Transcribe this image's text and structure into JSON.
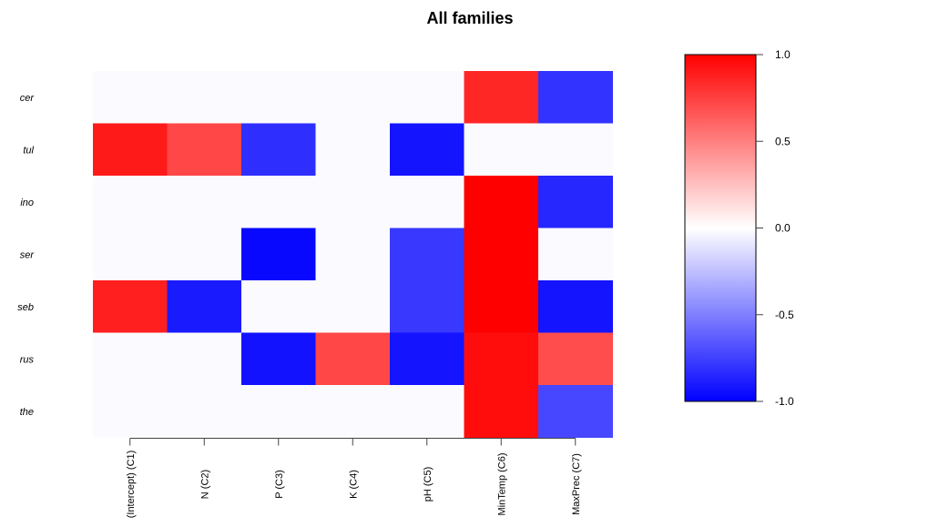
{
  "chart_data": {
    "type": "heatmap",
    "title": "All families",
    "rows": [
      "cer",
      "tul",
      "ino",
      "ser",
      "seb",
      "rus",
      "the"
    ],
    "columns": [
      "(Intercept) (C1)",
      "N (C2)",
      "P (C3)",
      "K (C4)",
      "pH (C5)",
      "MinTemp (C6)",
      "MaxPrec (C7)"
    ],
    "values": [
      [
        0,
        0,
        0,
        0,
        0,
        0.85,
        -0.8
      ],
      [
        0.9,
        0.72,
        -0.82,
        0,
        -0.92,
        0,
        0
      ],
      [
        0,
        0,
        0,
        0,
        0,
        1.0,
        -0.85
      ],
      [
        0,
        0,
        -0.97,
        0,
        -0.78,
        1.0,
        0
      ],
      [
        0.88,
        -0.9,
        0,
        0,
        -0.78,
        1.0,
        -0.92
      ],
      [
        0,
        0,
        -0.93,
        0.72,
        -0.92,
        0.95,
        0.7
      ],
      [
        0,
        0,
        0,
        0,
        0,
        0.95,
        -0.72
      ]
    ],
    "colorbar": {
      "range": [
        -1.0,
        1.0
      ],
      "ticks": [
        1.0,
        0.5,
        0.0,
        -0.5,
        -1.0
      ],
      "tick_labels": [
        "1.0",
        "0.5",
        "0.0",
        "-0.5",
        "-1.0"
      ],
      "low_color": "#0000ff",
      "mid_color": "#ffffff",
      "high_color": "#ff0000"
    },
    "zero_cell_color": "#fbfbff"
  }
}
